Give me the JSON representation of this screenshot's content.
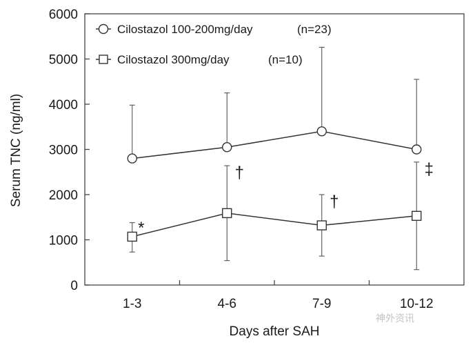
{
  "chart_data": {
    "type": "line",
    "categories": [
      "1-3",
      "4-6",
      "7-9",
      "10-12"
    ],
    "xlabel": "Days after SAH",
    "ylabel": "Serum TNC (ng/ml)",
    "ylim": [
      0,
      6000
    ],
    "yticks": [
      0,
      1000,
      2000,
      3000,
      4000,
      5000,
      6000
    ],
    "grid": false,
    "legend_position": "top-left",
    "series": [
      {
        "name": "Cilostazol 100-200mg/day",
        "n_label": "(n=23)",
        "marker": "circle",
        "values": [
          2800,
          3050,
          3400,
          3000
        ],
        "error_upper": [
          3980,
          4250,
          5260,
          4550
        ]
      },
      {
        "name": "Cilostazol 300mg/day",
        "n_label": "(n=10)",
        "marker": "square",
        "values": [
          1070,
          1590,
          1320,
          1530
        ],
        "error_upper": [
          1380,
          2640,
          2000,
          2720
        ],
        "error_lower": [
          730,
          540,
          640,
          340
        ],
        "annotations": [
          "*",
          "†",
          "†",
          "‡"
        ]
      }
    ]
  },
  "watermark": "神外资讯"
}
